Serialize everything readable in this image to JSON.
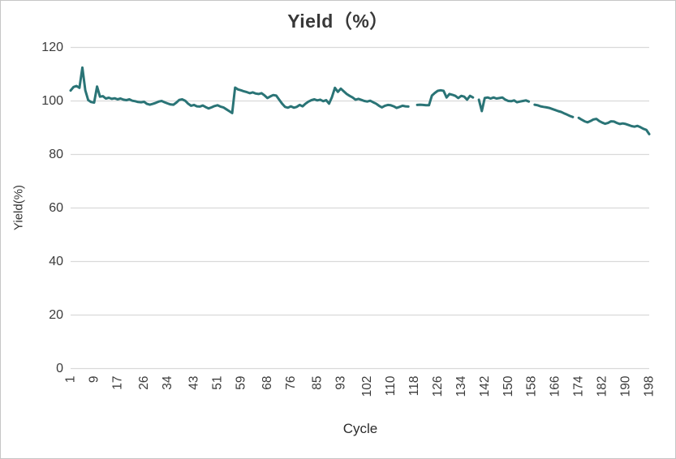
{
  "chart_data": {
    "type": "line",
    "title": "Yield（%）",
    "xlabel": "Cycle",
    "ylabel": "Yield(%)",
    "ylim": [
      0,
      120
    ],
    "yticks": [
      0,
      20,
      40,
      60,
      80,
      100,
      120
    ],
    "xticks": [
      1,
      9,
      17,
      26,
      34,
      43,
      51,
      59,
      68,
      76,
      85,
      93,
      102,
      110,
      118,
      126,
      134,
      142,
      150,
      158,
      166,
      174,
      182,
      190,
      198
    ],
    "x_range": [
      1,
      198
    ],
    "grid": true,
    "legend": "none",
    "line_color": "#2A7476",
    "grid_color": "#D9D9D9",
    "text_color": "#3B3B3B",
    "series": [
      {
        "name": "Yield",
        "values": [
          103.9,
          105.2,
          105.6,
          104.9,
          112.5,
          104.0,
          100.3,
          99.6,
          99.4,
          105.4,
          101.6,
          101.8,
          100.9,
          101.2,
          100.8,
          101.0,
          100.6,
          100.9,
          100.5,
          100.3,
          100.6,
          100.1,
          99.9,
          99.6,
          99.5,
          99.7,
          98.9,
          98.6,
          98.9,
          99.3,
          99.8,
          100.0,
          99.5,
          99.1,
          98.7,
          98.6,
          99.4,
          100.4,
          100.6,
          100.1,
          99.0,
          98.2,
          98.5,
          98.0,
          97.9,
          98.3,
          97.7,
          97.2,
          97.6,
          98.1,
          98.4,
          97.9,
          97.6,
          96.9,
          96.2,
          95.5,
          105.0,
          104.3,
          104.0,
          103.6,
          103.3,
          102.9,
          103.2,
          102.8,
          102.6,
          102.9,
          102.1,
          101.1,
          101.7,
          102.2,
          102.0,
          100.5,
          99.0,
          97.8,
          97.5,
          98.0,
          97.5,
          97.8,
          98.5,
          98.0,
          99.0,
          99.8,
          100.3,
          100.6,
          100.2,
          100.5,
          99.9,
          100.3,
          99.0,
          101.5,
          104.9,
          103.4,
          104.6,
          103.6,
          102.6,
          101.9,
          101.3,
          100.5,
          100.8,
          100.4,
          100.0,
          99.8,
          100.1,
          99.5,
          99.0,
          98.2,
          97.6,
          98.2,
          98.5,
          98.4,
          98.0,
          97.4,
          97.8,
          98.2,
          98.0,
          97.9,
          null,
          null,
          98.5,
          98.6,
          98.5,
          98.4,
          98.4,
          102.0,
          103.0,
          103.8,
          104.0,
          103.8,
          101.3,
          102.6,
          102.3,
          101.9,
          101.1,
          101.9,
          101.6,
          100.5,
          101.9,
          101.3,
          null,
          100.5,
          96.2,
          101.1,
          101.3,
          100.9,
          101.3,
          100.9,
          101.1,
          101.3,
          100.5,
          100.0,
          99.9,
          100.2,
          99.5,
          99.8,
          100.0,
          100.2,
          99.8,
          null,
          98.6,
          98.4,
          98.0,
          97.8,
          97.6,
          97.4,
          97.0,
          96.6,
          96.2,
          95.9,
          95.4,
          94.9,
          94.4,
          94.0,
          null,
          93.7,
          93.0,
          92.4,
          92.0,
          92.5,
          93.1,
          93.3,
          92.5,
          91.9,
          91.5,
          91.8,
          92.4,
          92.3,
          91.8,
          91.4,
          91.6,
          91.4,
          91.0,
          90.6,
          90.4,
          90.7,
          90.2,
          89.6,
          89.2,
          87.6
        ]
      }
    ]
  }
}
